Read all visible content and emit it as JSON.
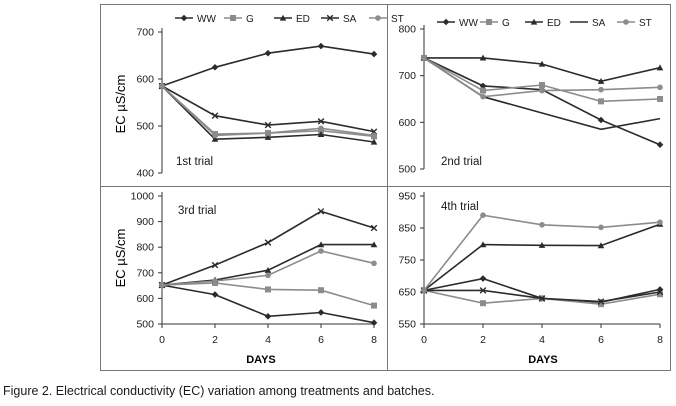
{
  "caption": "Figure 2. Electrical conductivity (EC) variation among treatments and batches.",
  "y_axis_title": "EC  µS/cm",
  "x_axis_title": "DAYS",
  "series_styles": [
    {
      "name": "WW",
      "color": "#2b2b2b",
      "marker": "diamond"
    },
    {
      "name": "G",
      "color": "#8c8c8c",
      "marker": "square"
    },
    {
      "name": "ED",
      "color": "#2b2b2b",
      "marker": "triangle"
    },
    {
      "name": "SA",
      "color": "#2b2b2b",
      "marker": "x"
    },
    {
      "name": "ST",
      "color": "#8c8c8c",
      "marker": "circle"
    }
  ],
  "chart_data": [
    {
      "type": "line",
      "title": "1st trial",
      "x": [
        0,
        2,
        4,
        6,
        8
      ],
      "ylim": [
        400,
        700
      ],
      "yticks": [
        400,
        500,
        600,
        700
      ],
      "xticks": [],
      "legend": [
        "WW",
        "G",
        "ED",
        "SA",
        "ST"
      ],
      "series": [
        {
          "name": "WW",
          "values": [
            585,
            625,
            655,
            670,
            653
          ]
        },
        {
          "name": "G",
          "values": [
            585,
            483,
            485,
            490,
            478
          ]
        },
        {
          "name": "ED",
          "values": [
            585,
            472,
            476,
            482,
            466
          ]
        },
        {
          "name": "SA",
          "values": [
            585,
            522,
            502,
            510,
            488
          ]
        },
        {
          "name": "ST",
          "values": [
            585,
            480,
            485,
            495,
            480
          ]
        }
      ]
    },
    {
      "type": "line",
      "title": "2nd trial",
      "x": [
        0,
        2,
        4,
        6,
        8
      ],
      "ylim": [
        500,
        800
      ],
      "yticks": [
        500,
        600,
        700,
        800
      ],
      "xticks": [],
      "legend": [
        "WW",
        "G",
        "ED",
        "SA",
        "ST"
      ],
      "series": [
        {
          "name": "WW",
          "values": [
            738,
            678,
            670,
            605,
            552
          ]
        },
        {
          "name": "G",
          "values": [
            738,
            668,
            680,
            645,
            650
          ]
        },
        {
          "name": "ED",
          "values": [
            738,
            738,
            725,
            688,
            717
          ]
        },
        {
          "name": "SA",
          "values": [
            738,
            655,
            620,
            585,
            608
          ]
        },
        {
          "name": "ST",
          "values": [
            738,
            655,
            668,
            670,
            675
          ]
        }
      ]
    },
    {
      "type": "line",
      "title": "3rd trial",
      "x": [
        0,
        2,
        4,
        6,
        8
      ],
      "ylim": [
        500,
        1000
      ],
      "yticks": [
        500,
        600,
        700,
        800,
        900,
        1000
      ],
      "xticks": [
        0,
        2,
        4,
        6,
        8
      ],
      "legend": [],
      "series": [
        {
          "name": "WW",
          "values": [
            652,
            615,
            530,
            545,
            505
          ]
        },
        {
          "name": "G",
          "values": [
            652,
            660,
            635,
            632,
            572
          ]
        },
        {
          "name": "ED",
          "values": [
            652,
            672,
            710,
            810,
            810
          ]
        },
        {
          "name": "SA",
          "values": [
            652,
            730,
            818,
            940,
            875
          ]
        },
        {
          "name": "ST",
          "values": [
            652,
            668,
            690,
            785,
            737
          ]
        }
      ]
    },
    {
      "type": "line",
      "title": "4th trial",
      "x": [
        0,
        2,
        4,
        6,
        8
      ],
      "ylim": [
        550,
        950
      ],
      "yticks": [
        550,
        650,
        750,
        850,
        950
      ],
      "xticks": [
        0,
        2,
        4,
        6,
        8
      ],
      "legend": [],
      "series": [
        {
          "name": "WW",
          "values": [
            655,
            692,
            630,
            618,
            658
          ]
        },
        {
          "name": "G",
          "values": [
            655,
            615,
            630,
            612,
            643
          ]
        },
        {
          "name": "ED",
          "values": [
            655,
            798,
            796,
            795,
            862
          ]
        },
        {
          "name": "SA",
          "values": [
            655,
            655,
            630,
            620,
            650
          ]
        },
        {
          "name": "ST",
          "values": [
            655,
            890,
            860,
            852,
            868
          ]
        }
      ]
    }
  ]
}
